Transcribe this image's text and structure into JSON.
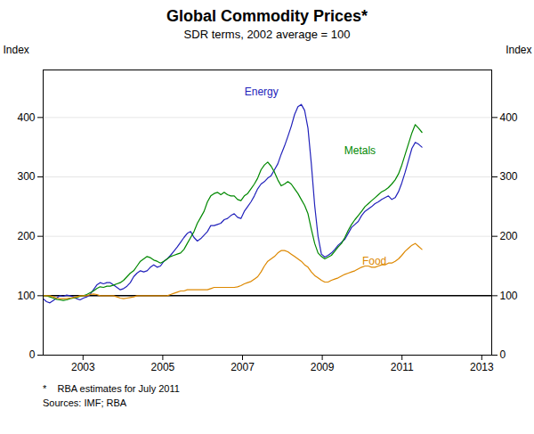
{
  "chart_data": {
    "type": "line",
    "title": "Global Commodity Prices*",
    "subtitle": "SDR terms, 2002 average = 100",
    "ylabel": "Index",
    "y2label": "Index",
    "footnotes": [
      "*    RBA estimates for July 2011",
      "Sources: IMF; RBA"
    ],
    "x": [
      2002,
      2002.084071,
      2002.168142,
      2002.252212,
      2002.336283,
      2002.420354,
      2002.504425,
      2002.588496,
      2002.672566,
      2002.756637,
      2002.840708,
      2002.924779,
      2003.00885,
      2003.09292,
      2003.176991,
      2003.261062,
      2003.345133,
      2003.429204,
      2003.513274,
      2003.597345,
      2003.681416,
      2003.765487,
      2003.849558,
      2003.933628,
      2004.017699,
      2004.10177,
      2004.185841,
      2004.269912,
      2004.353982,
      2004.438053,
      2004.522124,
      2004.606195,
      2004.690265,
      2004.774336,
      2004.858407,
      2004.942478,
      2005.026549,
      2005.110619,
      2005.19469,
      2005.278761,
      2005.362832,
      2005.446903,
      2005.530973,
      2005.615044,
      2005.699115,
      2005.783186,
      2005.867257,
      2005.951327,
      2006.035398,
      2006.119469,
      2006.20354,
      2006.287611,
      2006.371681,
      2006.455752,
      2006.539823,
      2006.623894,
      2006.707965,
      2006.792035,
      2006.876106,
      2006.960177,
      2007.044248,
      2007.128319,
      2007.212389,
      2007.29646,
      2007.380531,
      2007.464602,
      2007.548673,
      2007.632743,
      2007.716814,
      2007.800885,
      2007.884956,
      2007.969027,
      2008.053097,
      2008.137168,
      2008.221239,
      2008.30531,
      2008.389381,
      2008.473451,
      2008.557522,
      2008.641593,
      2008.725664,
      2008.809735,
      2008.893805,
      2008.977876,
      2009.061947,
      2009.146018,
      2009.230088,
      2009.314159,
      2009.39823,
      2009.482301,
      2009.566372,
      2009.650442,
      2009.734513,
      2009.818584,
      2009.902655,
      2009.986726,
      2010.070796,
      2010.154867,
      2010.238938,
      2010.323009,
      2010.40708,
      2010.49115,
      2010.575221,
      2010.659292,
      2010.743363,
      2010.827434,
      2010.911504,
      2010.995575,
      2011.079646,
      2011.163717,
      2011.247788,
      2011.331858,
      2011.415929,
      2011.5
    ],
    "series": [
      {
        "name": "Energy",
        "color": "#2222bb",
        "values": [
          95,
          90,
          88,
          92,
          96,
          100,
          99,
          101,
          100,
          98,
          95,
          93,
          96,
          98,
          102,
          110,
          118,
          122,
          120,
          122,
          122,
          118,
          114,
          110,
          112,
          116,
          122,
          132,
          138,
          142,
          140,
          142,
          148,
          152,
          148,
          150,
          158,
          162,
          168,
          175,
          182,
          190,
          198,
          205,
          208,
          198,
          192,
          196,
          202,
          208,
          218,
          218,
          220,
          222,
          228,
          230,
          235,
          238,
          232,
          230,
          242,
          250,
          258,
          268,
          280,
          288,
          292,
          298,
          302,
          312,
          322,
          338,
          352,
          368,
          385,
          405,
          418,
          422,
          412,
          382,
          322,
          252,
          200,
          170,
          165,
          168,
          172,
          178,
          185,
          190,
          195,
          205,
          215,
          220,
          225,
          235,
          242,
          246,
          250,
          255,
          258,
          262,
          265,
          268,
          262,
          265,
          275,
          290,
          308,
          328,
          348,
          358,
          355,
          350
        ]
      },
      {
        "name": "Metals",
        "color": "#008800",
        "values": [
          100,
          100,
          98,
          96,
          94,
          93,
          92,
          93,
          95,
          96,
          97,
          99,
          100,
          102,
          105,
          108,
          112,
          115,
          114,
          116,
          116,
          118,
          120,
          122,
          126,
          132,
          138,
          142,
          150,
          158,
          162,
          166,
          164,
          160,
          158,
          155,
          158,
          162,
          166,
          168,
          170,
          172,
          178,
          188,
          198,
          208,
          222,
          232,
          242,
          258,
          268,
          272,
          274,
          270,
          274,
          270,
          268,
          268,
          262,
          260,
          268,
          272,
          280,
          288,
          298,
          312,
          320,
          325,
          318,
          308,
          295,
          285,
          288,
          292,
          288,
          280,
          272,
          262,
          252,
          238,
          212,
          188,
          172,
          166,
          162,
          165,
          168,
          175,
          182,
          188,
          198,
          210,
          220,
          228,
          235,
          242,
          250,
          255,
          260,
          265,
          270,
          275,
          278,
          282,
          288,
          295,
          305,
          320,
          338,
          356,
          374,
          388,
          382,
          375
        ]
      },
      {
        "name": "Food",
        "color": "#dd8800",
        "values": [
          100,
          100,
          100,
          98,
          96,
          95,
          95,
          95,
          96,
          97,
          98,
          100,
          100,
          100,
          102,
          103,
          102,
          100,
          100,
          100,
          100,
          100,
          98,
          96,
          95,
          96,
          97,
          98,
          100,
          100,
          100,
          100,
          100,
          100,
          100,
          100,
          100,
          100,
          102,
          104,
          106,
          108,
          108,
          110,
          110,
          110,
          110,
          110,
          110,
          110,
          112,
          114,
          114,
          114,
          114,
          114,
          114,
          114,
          115,
          117,
          120,
          122,
          124,
          128,
          132,
          140,
          150,
          158,
          162,
          166,
          172,
          176,
          176,
          174,
          170,
          166,
          162,
          158,
          152,
          148,
          140,
          134,
          130,
          126,
          123,
          123,
          126,
          128,
          130,
          133,
          136,
          138,
          140,
          142,
          145,
          148,
          150,
          150,
          148,
          148,
          150,
          152,
          152,
          155,
          155,
          158,
          162,
          168,
          175,
          180,
          185,
          188,
          183,
          178
        ]
      }
    ],
    "xlim": [
      2002.0,
      2013.25
    ],
    "xticks": [
      2003,
      2005,
      2007,
      2009,
      2011,
      2013
    ],
    "ylim": [
      0,
      480
    ],
    "yticks": [
      0,
      100,
      200,
      300,
      400
    ],
    "y2lim": [
      0,
      480
    ],
    "y2ticks": [
      0,
      100,
      200,
      300,
      400
    ],
    "grid": true,
    "reference_lines": [
      {
        "y": 100,
        "color": "#000000"
      }
    ],
    "annotations": [
      {
        "text": "Energy",
        "x": 2007.05,
        "y": 438,
        "color": "#2222bb"
      },
      {
        "text": "Metals",
        "x": 2009.55,
        "y": 338,
        "color": "#008800"
      },
      {
        "text": "Food",
        "x": 2010.0,
        "y": 152,
        "color": "#dd8800"
      }
    ]
  }
}
